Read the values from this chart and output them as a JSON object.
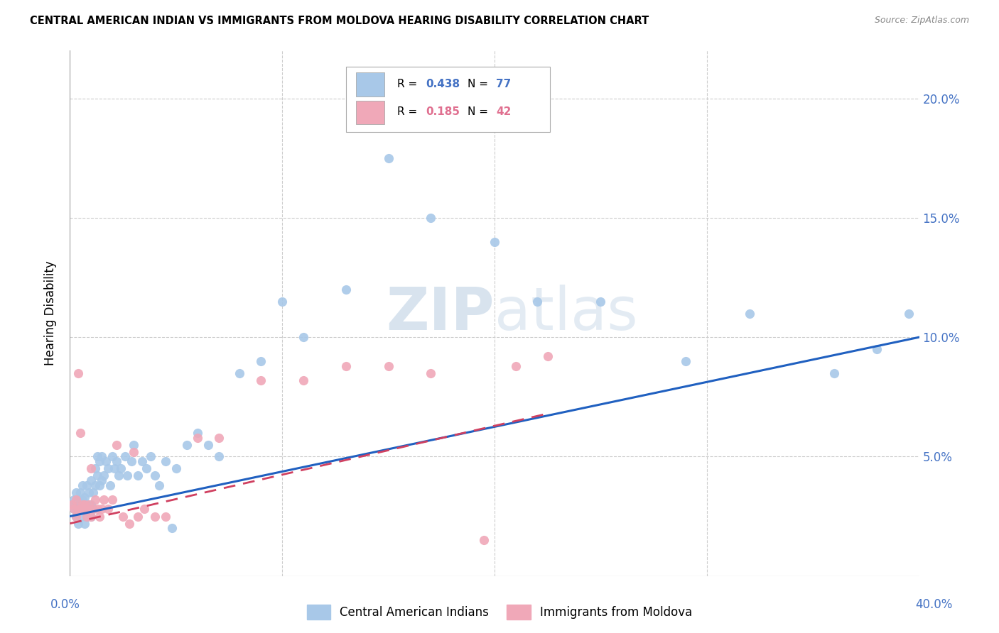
{
  "title": "CENTRAL AMERICAN INDIAN VS IMMIGRANTS FROM MOLDOVA HEARING DISABILITY CORRELATION CHART",
  "source": "Source: ZipAtlas.com",
  "ylabel": "Hearing Disability",
  "legend1_r": "0.438",
  "legend1_n": "77",
  "legend2_r": "0.185",
  "legend2_n": "42",
  "legend1_label": "Central American Indians",
  "legend2_label": "Immigrants from Moldova",
  "blue_color": "#a8c8e8",
  "pink_color": "#f0a8b8",
  "blue_line_color": "#2060c0",
  "pink_line_color": "#d04060",
  "text_color_blue": "#4472c4",
  "text_color_pink": "#e07090",
  "watermark_color": "#c8d8e8",
  "xlim": [
    0.0,
    0.4
  ],
  "ylim": [
    0.0,
    0.22
  ],
  "yticks": [
    0.05,
    0.1,
    0.15,
    0.2
  ],
  "ytick_labels": [
    "5.0%",
    "10.0%",
    "15.0%",
    "20.0%"
  ],
  "xtick_labels_show": [
    "0.0%",
    "40.0%"
  ],
  "blue_line_x": [
    0.0,
    0.4
  ],
  "blue_line_y": [
    0.025,
    0.1
  ],
  "pink_line_x": [
    0.0,
    0.225
  ],
  "pink_line_y": [
    0.022,
    0.068
  ],
  "blue_scatter_x": [
    0.001,
    0.002,
    0.002,
    0.003,
    0.003,
    0.003,
    0.004,
    0.004,
    0.004,
    0.005,
    0.005,
    0.005,
    0.006,
    0.006,
    0.006,
    0.007,
    0.007,
    0.007,
    0.008,
    0.008,
    0.008,
    0.009,
    0.009,
    0.01,
    0.01,
    0.01,
    0.011,
    0.011,
    0.012,
    0.012,
    0.013,
    0.013,
    0.014,
    0.014,
    0.015,
    0.015,
    0.016,
    0.017,
    0.018,
    0.019,
    0.02,
    0.021,
    0.022,
    0.023,
    0.024,
    0.026,
    0.027,
    0.029,
    0.03,
    0.032,
    0.034,
    0.036,
    0.038,
    0.04,
    0.042,
    0.045,
    0.048,
    0.05,
    0.055,
    0.06,
    0.065,
    0.07,
    0.08,
    0.09,
    0.1,
    0.11,
    0.13,
    0.15,
    0.17,
    0.2,
    0.22,
    0.25,
    0.29,
    0.32,
    0.36,
    0.38,
    0.395
  ],
  "blue_scatter_y": [
    0.03,
    0.032,
    0.028,
    0.035,
    0.03,
    0.025,
    0.032,
    0.028,
    0.022,
    0.035,
    0.03,
    0.025,
    0.032,
    0.038,
    0.028,
    0.033,
    0.028,
    0.022,
    0.03,
    0.025,
    0.038,
    0.028,
    0.035,
    0.03,
    0.025,
    0.04,
    0.028,
    0.035,
    0.045,
    0.038,
    0.05,
    0.042,
    0.048,
    0.038,
    0.04,
    0.05,
    0.042,
    0.048,
    0.045,
    0.038,
    0.05,
    0.045,
    0.048,
    0.042,
    0.045,
    0.05,
    0.042,
    0.048,
    0.055,
    0.042,
    0.048,
    0.045,
    0.05,
    0.042,
    0.038,
    0.048,
    0.02,
    0.045,
    0.055,
    0.06,
    0.055,
    0.05,
    0.085,
    0.09,
    0.115,
    0.1,
    0.12,
    0.175,
    0.15,
    0.14,
    0.115,
    0.115,
    0.09,
    0.11,
    0.085,
    0.095,
    0.11
  ],
  "pink_scatter_x": [
    0.001,
    0.002,
    0.003,
    0.003,
    0.004,
    0.004,
    0.005,
    0.005,
    0.006,
    0.007,
    0.007,
    0.008,
    0.008,
    0.009,
    0.01,
    0.01,
    0.011,
    0.012,
    0.013,
    0.014,
    0.015,
    0.016,
    0.018,
    0.02,
    0.022,
    0.025,
    0.028,
    0.03,
    0.032,
    0.035,
    0.04,
    0.045,
    0.06,
    0.07,
    0.09,
    0.11,
    0.13,
    0.15,
    0.17,
    0.195,
    0.21,
    0.225
  ],
  "pink_scatter_y": [
    0.03,
    0.028,
    0.032,
    0.025,
    0.028,
    0.085,
    0.028,
    0.06,
    0.03,
    0.028,
    0.03,
    0.025,
    0.028,
    0.03,
    0.025,
    0.045,
    0.028,
    0.032,
    0.028,
    0.025,
    0.028,
    0.032,
    0.028,
    0.032,
    0.055,
    0.025,
    0.022,
    0.052,
    0.025,
    0.028,
    0.025,
    0.025,
    0.058,
    0.058,
    0.082,
    0.082,
    0.088,
    0.088,
    0.085,
    0.015,
    0.088,
    0.092
  ]
}
